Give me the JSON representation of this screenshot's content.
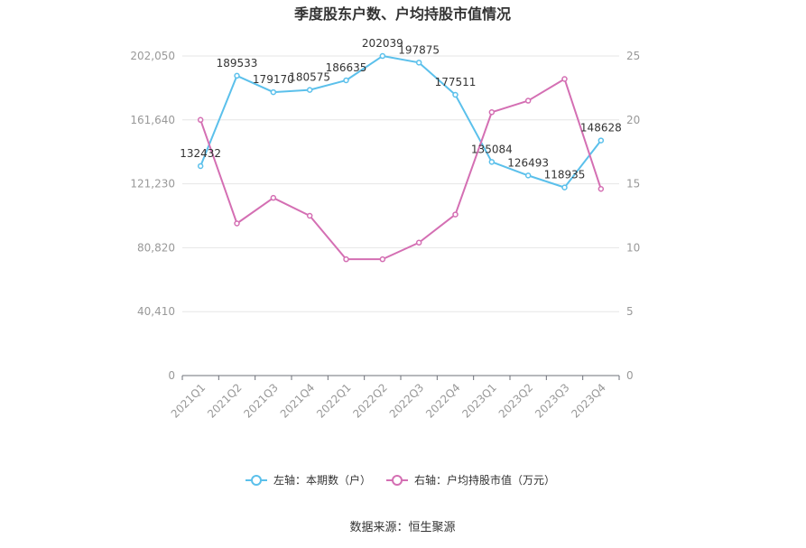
{
  "chart_data": {
    "type": "line",
    "title": "季度股东户数、户均持股市值情况",
    "categories": [
      "2021Q1",
      "2021Q2",
      "2021Q3",
      "2021Q4",
      "2022Q1",
      "2022Q2",
      "2022Q3",
      "2022Q4",
      "2023Q1",
      "2023Q2",
      "2023Q3",
      "2023Q4"
    ],
    "y_left": {
      "ticks": [
        "0",
        "40,410",
        "80,820",
        "121,230",
        "161,640",
        "202,050"
      ],
      "range": [
        0,
        202050
      ]
    },
    "y_right": {
      "ticks": [
        "0",
        "5",
        "10",
        "15",
        "20",
        "25"
      ],
      "range": [
        0,
        25
      ]
    },
    "series": [
      {
        "name": "左轴：本期数（户）",
        "axis": "left",
        "color": "#5bc0eb",
        "values": [
          132432,
          189533,
          179170,
          180575,
          186635,
          202039,
          197875,
          177511,
          135084,
          126493,
          118935,
          148628
        ],
        "labels": [
          "132432",
          "189533",
          "179170",
          "180575",
          "186635",
          "202039",
          "197875",
          "177511",
          "135084",
          "126493",
          "118935",
          "148628"
        ]
      },
      {
        "name": "右轴：户均持股市值（万元）",
        "axis": "right",
        "color": "#d46fb3",
        "values": [
          20.0,
          11.9,
          13.9,
          12.5,
          9.1,
          9.1,
          10.4,
          12.6,
          20.6,
          21.5,
          23.2,
          14.6
        ]
      }
    ],
    "grid": true,
    "legend_position": "bottom"
  },
  "footer": {
    "source": "数据来源：恒生聚源"
  }
}
